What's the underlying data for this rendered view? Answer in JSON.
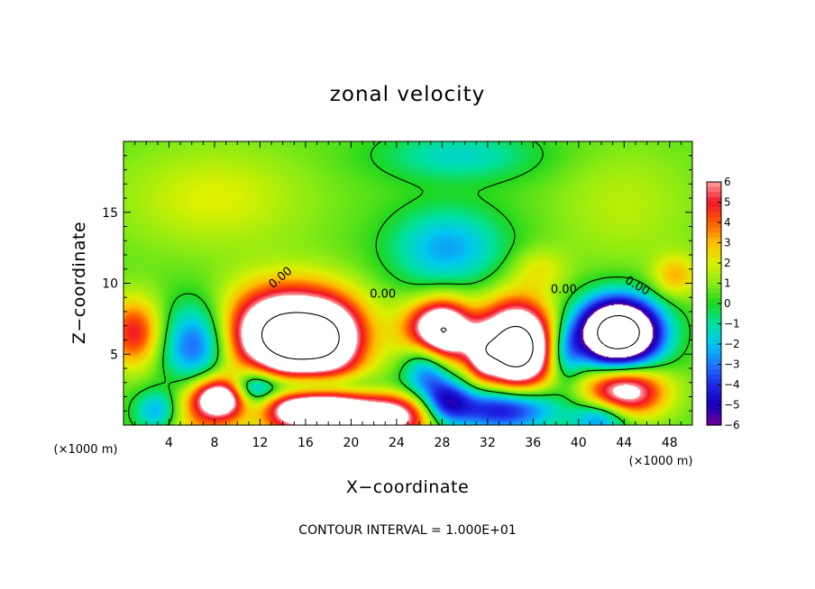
{
  "chart_data": {
    "type": "heatmap",
    "title": "zonal velocity",
    "xlabel": "X−coordinate",
    "ylabel": "Z−coordinate",
    "x_unit_left": "(×1000 m)",
    "x_unit_right": "(×1000 m)",
    "xlim": [
      0,
      50
    ],
    "ylim": [
      0,
      20
    ],
    "x_ticks": [
      4,
      8,
      12,
      16,
      20,
      24,
      28,
      32,
      36,
      40,
      44,
      48
    ],
    "y_ticks": [
      5,
      10,
      15
    ],
    "colorbar": {
      "range": [
        -6,
        6
      ],
      "ticks": [
        6,
        5,
        4,
        3,
        2,
        1,
        0,
        -1,
        -2,
        -3,
        -4,
        -5,
        -6
      ],
      "tick_labels": [
        "6",
        "5",
        "4",
        "3",
        "2",
        "1",
        "0",
        "−1",
        "−2",
        "−3",
        "−4",
        "−5",
        "−6"
      ],
      "over_color": "#ffffff",
      "under_color": "#ffffff"
    },
    "contour_label": "0.00",
    "contour_interval_text": "CONTOUR INTERVAL = 1.000E+01",
    "blobs": [
      {
        "x": 6.5,
        "z": 1.0,
        "rx": 3.5,
        "rz": 3.0,
        "a": 2.6
      },
      {
        "x": 1.0,
        "z": 6.5,
        "rx": 2.5,
        "rz": 2.4,
        "a": 4.5
      },
      {
        "x": 3.0,
        "z": 1.0,
        "rx": 2.0,
        "rz": 1.5,
        "a": -3.5
      },
      {
        "x": 6.5,
        "z": 5.5,
        "rx": 3.2,
        "rz": 3.0,
        "a": -5.0
      },
      {
        "x": 14.7,
        "z": 6.3,
        "rx": 5.5,
        "rz": 3.2,
        "a": 12.0
      },
      {
        "x": 18.5,
        "z": 6.0,
        "rx": 2.5,
        "rz": 2.5,
        "a": 3.0
      },
      {
        "x": 8.5,
        "z": 2.0,
        "rx": 2.3,
        "rz": 1.4,
        "a": 7.0
      },
      {
        "x": 11.5,
        "z": 2.2,
        "rx": 2.0,
        "rz": 2.0,
        "a": -4.0
      },
      {
        "x": 17.5,
        "z": 1.0,
        "rx": 6.0,
        "rz": 1.6,
        "a": 9.0
      },
      {
        "x": 16.0,
        "z": 2.7,
        "rx": 6.0,
        "rz": 1.0,
        "a": -4.5
      },
      {
        "x": 24.5,
        "z": 0.5,
        "rx": 3.0,
        "rz": 1.6,
        "a": 4.5
      },
      {
        "x": 27.5,
        "z": 6.5,
        "rx": 2.7,
        "rz": 2.2,
        "a": 14.0
      },
      {
        "x": 26.8,
        "z": 5.2,
        "rx": 2.2,
        "rz": 3.0,
        "a": -7.0
      },
      {
        "x": 28.5,
        "z": 1.6,
        "rx": 2.0,
        "rz": 1.5,
        "a": -4.0
      },
      {
        "x": 34.5,
        "z": 5.5,
        "rx": 3.2,
        "rz": 3.0,
        "a": 12.0
      },
      {
        "x": 31.5,
        "z": 5.0,
        "rx": 1.3,
        "rz": 1.8,
        "a": 3.0
      },
      {
        "x": 33.5,
        "z": 1.2,
        "rx": 4.5,
        "rz": 1.6,
        "a": -6.0
      },
      {
        "x": 43.5,
        "z": 6.5,
        "rx": 3.5,
        "rz": 2.3,
        "a": -14.0
      },
      {
        "x": 38.8,
        "z": 5.0,
        "rx": 1.5,
        "rz": 2.0,
        "a": -3.0
      },
      {
        "x": 44.0,
        "z": 2.4,
        "rx": 3.5,
        "rz": 1.8,
        "a": 7.0
      },
      {
        "x": 42.0,
        "z": 0.5,
        "rx": 2.5,
        "rz": 1.3,
        "a": -4.0
      },
      {
        "x": 48.5,
        "z": 10.5,
        "rx": 2.0,
        "rz": 1.5,
        "a": 2.5
      },
      {
        "x": 36.5,
        "z": 11.0,
        "rx": 2.5,
        "rz": 1.5,
        "a": 1.5
      },
      {
        "x": 28.5,
        "z": 12.5,
        "rx": 5.0,
        "rz": 2.8,
        "a": -3.0
      },
      {
        "x": 29.5,
        "z": 19.0,
        "rx": 7.0,
        "rz": 1.8,
        "a": -2.0
      },
      {
        "x": 8.0,
        "z": 16.0,
        "rx": 8.0,
        "rz": 3.5,
        "a": 1.5
      },
      {
        "x": 44.0,
        "z": 15.5,
        "rx": 6.0,
        "rz": 4.0,
        "a": 1.0
      }
    ]
  }
}
